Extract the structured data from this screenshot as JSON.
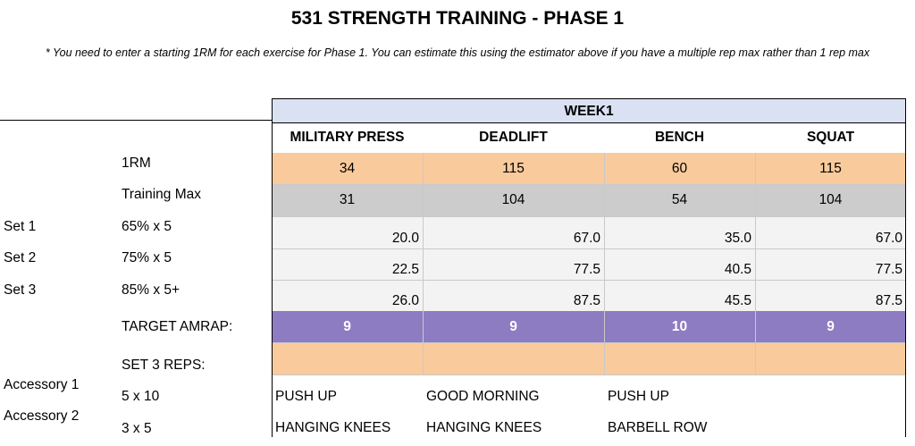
{
  "title": "531 STRENGTH TRAINING - PHASE 1",
  "note": "* You need to enter a starting 1RM for each exercise for Phase 1. You can estimate this using the estimator above if you have a multiple rep max rather than 1 rep max",
  "week_label": "WEEK1",
  "exercises": [
    "MILITARY PRESS",
    "DEADLIFT",
    "BENCH",
    "SQUAT"
  ],
  "row_labels": {
    "one_rm": "1RM",
    "training_max": "Training Max",
    "set1_name": "Set 1",
    "set1_scheme": "65% x 5",
    "set2_name": "Set 2",
    "set2_scheme": "75% x 5",
    "set3_name": "Set 3",
    "set3_scheme": "85% x 5+",
    "target_amrap": "TARGET AMRAP:",
    "set3_reps": "SET 3 REPS:",
    "accessory1_name": "Accessory 1",
    "accessory1_scheme": "5 x 10",
    "accessory2_name": "Accessory 2",
    "accessory2_scheme": "3 x 5"
  },
  "values": {
    "one_rm": [
      "34",
      "115",
      "60",
      "115"
    ],
    "training_max": [
      "31",
      "104",
      "54",
      "104"
    ],
    "set1": [
      "20.0",
      "67.0",
      "35.0",
      "67.0"
    ],
    "set2": [
      "22.5",
      "77.5",
      "40.5",
      "77.5"
    ],
    "set3": [
      "26.0",
      "87.5",
      "45.5",
      "87.5"
    ],
    "target_amrap": [
      "9",
      "9",
      "10",
      "9"
    ],
    "set3_reps": [
      "",
      "",
      "",
      ""
    ],
    "accessory1": [
      "PUSH UP",
      "GOOD MORNING",
      "PUSH UP",
      ""
    ],
    "accessory2": [
      "HANGING KNEES",
      "HANGING KNEES",
      "BARBELL ROW",
      ""
    ]
  },
  "colors": {
    "week_header": "#dae1f3",
    "one_rm_fill": "#f9cb9c",
    "training_max_fill": "#cccccc",
    "set_fill": "#f3f3f3",
    "amrap_fill": "#8e7cc3",
    "set3_reps_fill": "#f9cb9c"
  }
}
